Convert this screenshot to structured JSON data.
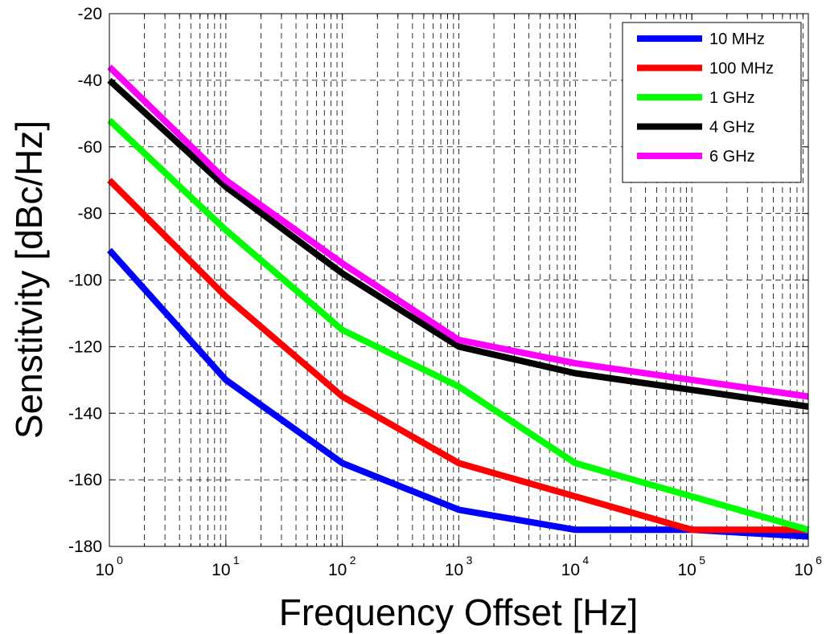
{
  "chart_data": {
    "type": "line",
    "title": "",
    "xlabel": "Frequency Offset [Hz]",
    "ylabel": "Senstitvity [dBc/Hz]",
    "x_scale": "log",
    "xlim": [
      1,
      1000000
    ],
    "ylim": [
      -180,
      -20
    ],
    "grid": true,
    "grid_style": "dashed",
    "legend_position": "top-right",
    "x_tick_labels": [
      {
        "base": "10",
        "exp": "0"
      },
      {
        "base": "10",
        "exp": "1"
      },
      {
        "base": "10",
        "exp": "2"
      },
      {
        "base": "10",
        "exp": "3"
      },
      {
        "base": "10",
        "exp": "4"
      },
      {
        "base": "10",
        "exp": "5"
      },
      {
        "base": "10",
        "exp": "6"
      }
    ],
    "y_tick_labels": [
      "-20",
      "-40",
      "-60",
      "-80",
      "-100",
      "-120",
      "-140",
      "-160",
      "-180"
    ],
    "x": [
      1,
      10,
      100,
      1000,
      10000,
      100000,
      1000000
    ],
    "series": [
      {
        "name": "10 MHz",
        "color": "#0000ff",
        "values": [
          -91,
          -130,
          -155,
          -169,
          -175,
          -175,
          -177
        ]
      },
      {
        "name": "100 MHz",
        "color": "#ff0000",
        "values": [
          -70,
          -105,
          -135,
          -155,
          -165,
          -175,
          -175
        ]
      },
      {
        "name": "1 GHz",
        "color": "#00ff00",
        "values": [
          -52,
          -85,
          -115,
          -132,
          -155,
          -165,
          -175
        ]
      },
      {
        "name": "4 GHz",
        "color": "#000000",
        "values": [
          -40,
          -72,
          -98,
          -120,
          -128,
          -133,
          -138
        ]
      },
      {
        "name": "6 GHz",
        "color": "#ff00ff",
        "values": [
          -36,
          -70,
          -95,
          -118,
          -125,
          -130,
          -135
        ]
      }
    ]
  }
}
